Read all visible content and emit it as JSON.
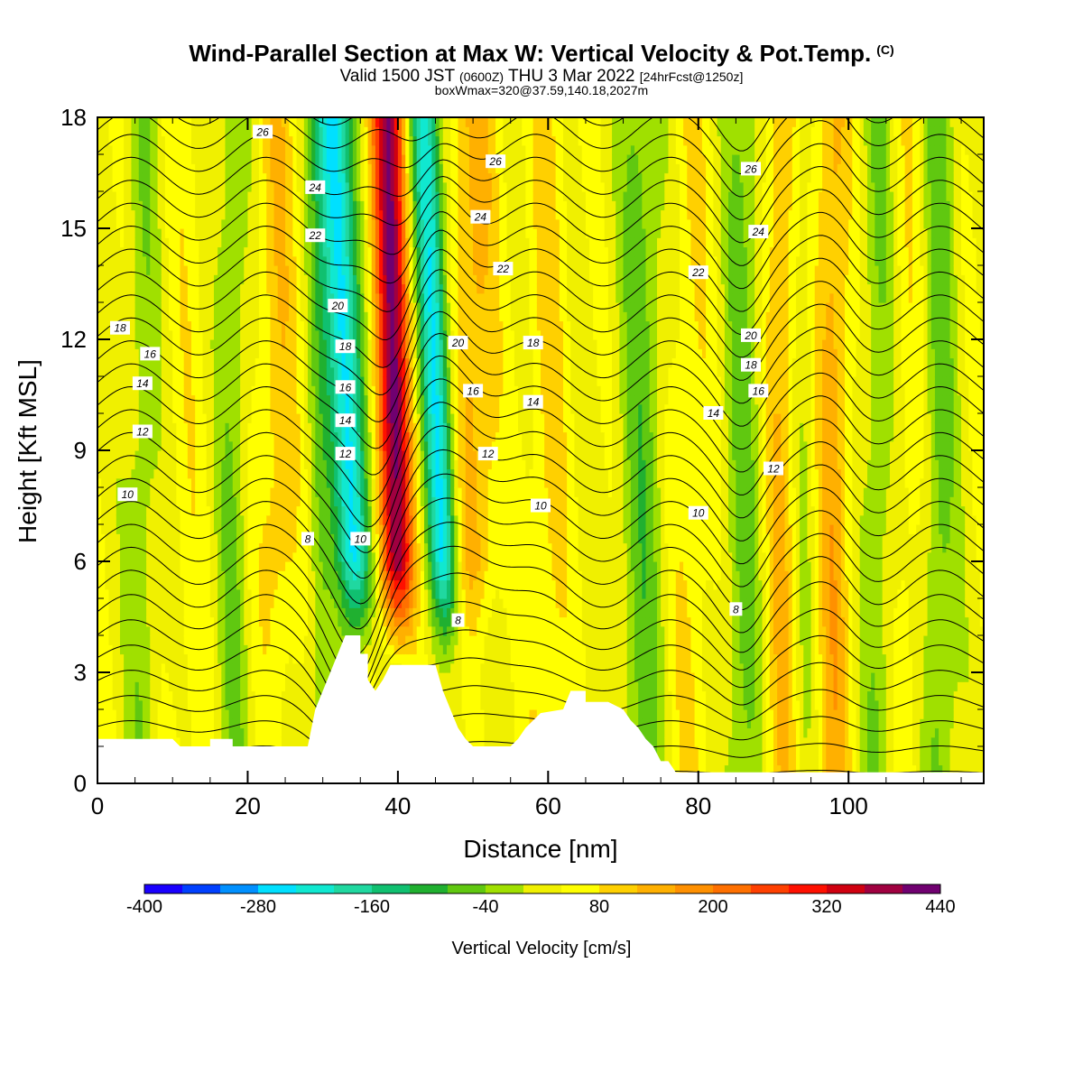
{
  "title": {
    "main": "Wind-Parallel Section at Max W: Vertical Velocity & Pot.Temp.",
    "copyright": "(C)",
    "valid_prefix": "Valid 1500 JST",
    "valid_utc": "(0600Z)",
    "valid_date": "THU 3 Mar 2022",
    "forecast": "[24hrFcst@1250z]",
    "box_info": "boxWmax=320@37.59,140.18,2027m"
  },
  "chart_data": {
    "type": "heatmap",
    "xlabel": "Distance [nm]",
    "ylabel": "Height [Kft MSL]",
    "xlim": [
      0,
      118
    ],
    "ylim": [
      0,
      18
    ],
    "x_ticks": [
      "0",
      "20",
      "40",
      "60",
      "80",
      "100"
    ],
    "y_ticks": [
      "0",
      "3",
      "6",
      "9",
      "12",
      "15",
      "18"
    ],
    "colorbar": {
      "title": "Vertical Velocity [cm/s]",
      "tick_labels": [
        "-400",
        "-280",
        "-160",
        "-40",
        "80",
        "200",
        "320",
        "440"
      ],
      "levels": [
        -400,
        -360,
        -320,
        -280,
        -240,
        -200,
        -160,
        -120,
        -80,
        -40,
        0,
        40,
        80,
        120,
        160,
        200,
        240,
        280,
        320,
        360,
        400,
        440
      ],
      "colors": [
        "#1a00ff",
        "#0040ff",
        "#0090ff",
        "#00e0ff",
        "#10e8d0",
        "#20d8a0",
        "#10c070",
        "#20b030",
        "#60c810",
        "#a0e000",
        "#f0f000",
        "#ffff00",
        "#ffd000",
        "#ffb000",
        "#ff9000",
        "#ff7000",
        "#ff4000",
        "#ff1000",
        "#d00010",
        "#a00040",
        "#700070"
      ]
    },
    "theta_contour_labels": [
      "8",
      "10",
      "12",
      "14",
      "16",
      "18",
      "20",
      "22",
      "24",
      "26"
    ],
    "max_w_label": "320",
    "terrain_kft": [
      [
        0,
        1.2
      ],
      [
        10,
        1.2
      ],
      [
        11,
        1
      ],
      [
        15,
        1
      ],
      [
        15,
        1.2
      ],
      [
        18,
        1.2
      ],
      [
        18,
        1
      ],
      [
        28,
        1
      ],
      [
        29,
        2
      ],
      [
        30,
        2.5
      ],
      [
        31,
        3
      ],
      [
        32,
        3.5
      ],
      [
        33,
        4
      ],
      [
        35,
        4
      ],
      [
        35,
        3.5
      ],
      [
        36,
        3.5
      ],
      [
        36,
        2.8
      ],
      [
        37,
        2.5
      ],
      [
        38,
        2.8
      ],
      [
        39,
        3.2
      ],
      [
        45,
        3.2
      ],
      [
        46,
        2.5
      ],
      [
        47,
        2
      ],
      [
        48,
        1.5
      ],
      [
        49,
        1.2
      ],
      [
        50,
        1
      ],
      [
        55,
        1
      ],
      [
        56,
        1.2
      ],
      [
        57,
        1.5
      ],
      [
        58,
        1.7
      ],
      [
        59,
        1.9
      ],
      [
        62,
        2
      ],
      [
        63,
        2.5
      ],
      [
        65,
        2.5
      ],
      [
        65,
        2.2
      ],
      [
        68,
        2.2
      ],
      [
        70,
        2
      ],
      [
        71,
        1.7
      ],
      [
        72,
        1.5
      ],
      [
        73,
        1.2
      ],
      [
        74,
        1
      ],
      [
        75,
        0.6
      ],
      [
        76,
        0.6
      ],
      [
        77,
        0.3
      ],
      [
        118,
        0.3
      ]
    ]
  }
}
